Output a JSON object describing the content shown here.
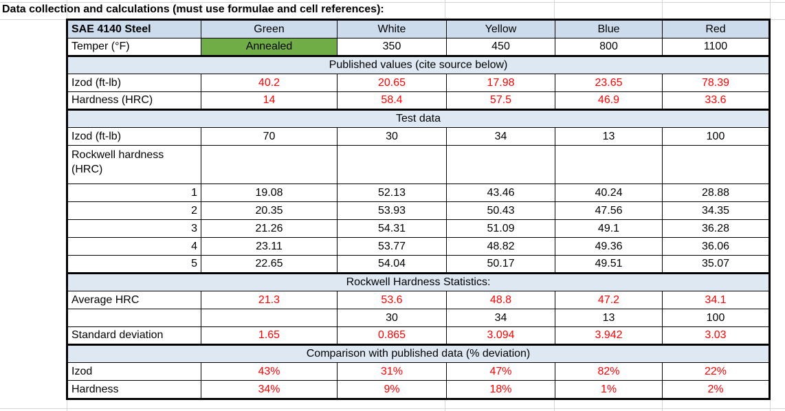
{
  "heading": "Data collection and calculations (must use formulae and cell references):",
  "colors": {
    "header_fill": "#cddced",
    "section_fill": "#dde8f3",
    "annealed_fill": "#70ad47",
    "calc_text": "#ff0000",
    "gridline": "#d4d4d4"
  },
  "header": {
    "label": "SAE 4140 Steel",
    "columns": [
      "Green",
      "White",
      "Yellow",
      "Blue",
      "Red"
    ]
  },
  "temper": {
    "label": "Temper (°F)",
    "values": [
      "Annealed",
      "350",
      "450",
      "800",
      "1100"
    ]
  },
  "published": {
    "title": "Published values (cite source below)",
    "izod": {
      "label": "Izod (ft-lb)",
      "values": [
        "40.2",
        "20.65",
        "17.98",
        "23.65",
        "78.39"
      ]
    },
    "hardness": {
      "label": "Hardness (HRC)",
      "values": [
        "14",
        "58.4",
        "57.5",
        "46.9",
        "33.6"
      ]
    }
  },
  "test": {
    "title": "Test data",
    "izod": {
      "label": "Izod (ft-lb)",
      "values": [
        "70",
        "30",
        "34",
        "13",
        "100"
      ]
    },
    "rockwell_label": "Rockwell hardness (HRC)",
    "trials": [
      {
        "n": "1",
        "values": [
          "19.08",
          "52.13",
          "43.46",
          "40.24",
          "28.88"
        ]
      },
      {
        "n": "2",
        "values": [
          "20.35",
          "53.93",
          "50.43",
          "47.56",
          "34.35"
        ]
      },
      {
        "n": "3",
        "values": [
          "21.26",
          "54.31",
          "51.09",
          "49.1",
          "36.28"
        ]
      },
      {
        "n": "4",
        "values": [
          "23.11",
          "53.77",
          "48.82",
          "49.36",
          "36.06"
        ]
      },
      {
        "n": "5",
        "values": [
          "22.65",
          "54.04",
          "50.17",
          "49.51",
          "35.07"
        ]
      }
    ]
  },
  "stats": {
    "title": "Rockwell Hardness Statistics:",
    "average": {
      "label": "Average HRC",
      "values": [
        "21.3",
        "53.6",
        "48.8",
        "47.2",
        "34.1"
      ]
    },
    "extra": {
      "label": "",
      "values": [
        "",
        "30",
        "34",
        "13",
        "100"
      ]
    },
    "stdev": {
      "label": "Standard deviation",
      "values": [
        "1.65",
        "0.865",
        "3.094",
        "3.942",
        "3.03"
      ]
    }
  },
  "comparison": {
    "title": "Comparison with published data (% deviation)",
    "izod": {
      "label": "Izod",
      "values": [
        "43%",
        "31%",
        "47%",
        "82%",
        "22%"
      ]
    },
    "hardness": {
      "label": "Hardness",
      "values": [
        "34%",
        "9%",
        "18%",
        "1%",
        "2%"
      ]
    }
  }
}
